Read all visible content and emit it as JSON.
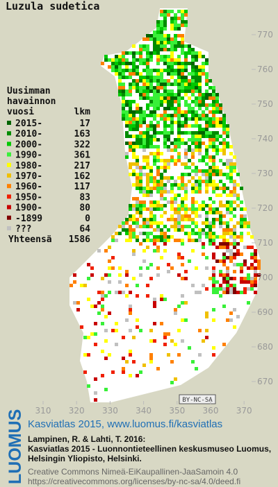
{
  "title": "Luzula sudetica",
  "legend": {
    "heading": [
      "Uusimman",
      "havainnon",
      "vuosi"
    ],
    "count_heading": "lkm",
    "items": [
      {
        "label": "2015-",
        "count": 17,
        "color": "#006400"
      },
      {
        "label": "2010-",
        "count": 163,
        "color": "#008c00"
      },
      {
        "label": "2000-",
        "count": 322,
        "color": "#00c800"
      },
      {
        "label": "1990-",
        "count": 361,
        "color": "#38f038"
      },
      {
        "label": "1980-",
        "count": 217,
        "color": "#ffff00"
      },
      {
        "label": "1970-",
        "count": 162,
        "color": "#f0c000"
      },
      {
        "label": "1960-",
        "count": 117,
        "color": "#ff8000"
      },
      {
        "label": "1950-",
        "count": 83,
        "color": "#f02000"
      },
      {
        "label": "1900-",
        "count": 80,
        "color": "#c80000"
      },
      {
        "label": "-1899",
        "count": 0,
        "color": "#800000"
      },
      {
        "label": "???",
        "count": 64,
        "color": "#c0c0c0"
      }
    ],
    "total_label": "Yhteensä",
    "total": 1586
  },
  "map": {
    "yticks": [
      770,
      760,
      750,
      740,
      730,
      720,
      710,
      700,
      690,
      680,
      670
    ],
    "xticks": [
      310,
      320,
      330,
      340,
      350,
      360,
      370
    ]
  },
  "license_badge": "BY-NC-SA",
  "footer": {
    "logo": "LUOMUS",
    "link": "Kasviatlas 2015, www.luomus.fi/kasviatlas",
    "citation": [
      "Lampinen, R. & Lahti, T. 2016:",
      "Kasviatlas 2015 - Luonnontieteellinen keskusmuseo Luomus,",
      "Helsingin Yliopisto, Helsinki."
    ],
    "license": [
      "Creative Commons Nimeä-EiKaupallinen-JaaSamoin 4.0",
      "https://creativecommons.org/licenses/by-nc-sa/4.0/deed.fi"
    ]
  }
}
